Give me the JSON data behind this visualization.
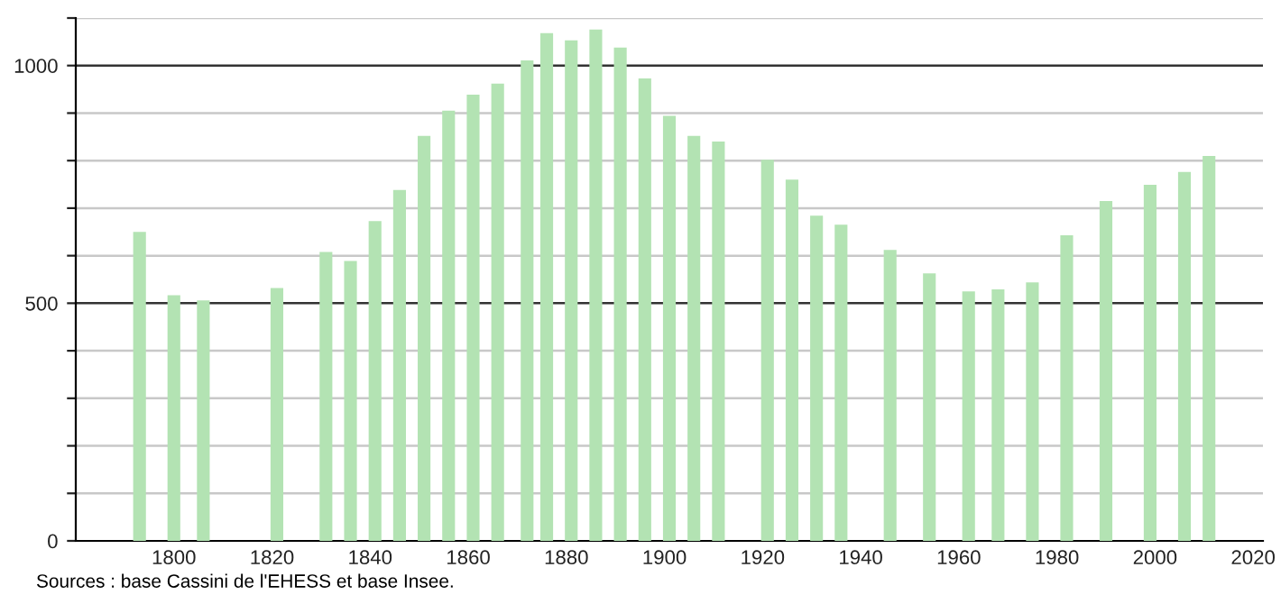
{
  "chart_data": {
    "type": "bar",
    "x": [
      1793,
      1800,
      1806,
      1821,
      1831,
      1836,
      1841,
      1846,
      1851,
      1856,
      1861,
      1866,
      1872,
      1876,
      1881,
      1886,
      1891,
      1896,
      1901,
      1906,
      1911,
      1921,
      1926,
      1931,
      1936,
      1946,
      1954,
      1962,
      1968,
      1975,
      1982,
      1990,
      1999,
      2006,
      2011
    ],
    "values": [
      650,
      517,
      506,
      532,
      608,
      589,
      673,
      738,
      852,
      905,
      939,
      962,
      1011,
      1068,
      1053,
      1076,
      1038,
      973,
      894,
      852,
      840,
      802,
      760,
      684,
      665,
      612,
      563,
      525,
      529,
      544,
      643,
      715,
      749,
      776,
      810
    ],
    "color": "#b3e3b3",
    "xlim": [
      1780,
      2022
    ],
    "xticks": [
      1800,
      1820,
      1840,
      1860,
      1880,
      1900,
      1920,
      1940,
      1960,
      1980,
      2000,
      2020
    ],
    "ylim": [
      0,
      1100
    ],
    "yticks": [
      0,
      {
        "value": 100,
        "label": null
      },
      {
        "value": 200,
        "label": null
      },
      {
        "value": 300,
        "label": null
      },
      {
        "value": 400,
        "label": null
      },
      500,
      {
        "value": 600,
        "label": null
      },
      {
        "value": 700,
        "label": null
      },
      {
        "value": 800,
        "label": null
      },
      {
        "value": 900,
        "label": null
      },
      1000,
      {
        "value": 1100,
        "label": null
      }
    ],
    "grid": "y",
    "legend": false,
    "annotations": [
      "Sources : base Cassini de l'EHESS et base Insee."
    ]
  }
}
